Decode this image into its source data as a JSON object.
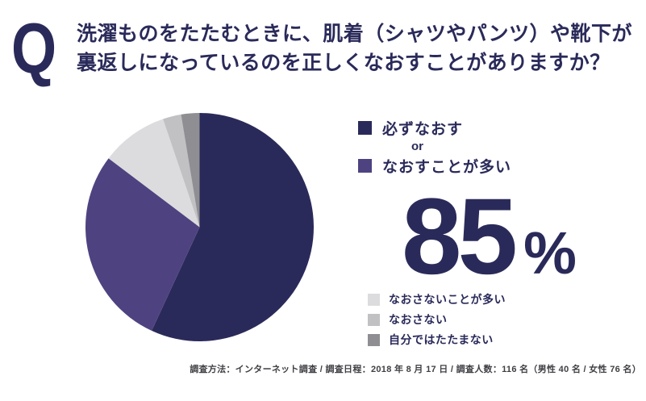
{
  "header": {
    "q_mark": "Q",
    "title_line1": "洗濯ものをたたむときに、肌着（シャツやパンツ）や靴下が",
    "title_line2": "裏返しになっているのを正しくなおすことがありますか？"
  },
  "chart_data": {
    "type": "pie",
    "title": "洗濯ものをたたむときに、肌着（シャツやパンツ）や靴下が裏返しになっているのを正しくなおすことがありますか？",
    "categories": [
      "必ずなおす",
      "なおすことが多い",
      "なおさないことが多い",
      "なおさない",
      "自分ではたたまない"
    ],
    "values": [
      56.9,
      28.4,
      9.5,
      2.6,
      2.6
    ],
    "colors": [
      "#2a2a5a",
      "#4e4380",
      "#dcdcde",
      "#c1c1c4",
      "#8f8f93"
    ],
    "start_angle": "top",
    "direction": "clockwise",
    "legend_position": "right",
    "highlight": {
      "value": "85",
      "unit": "%",
      "covers": "必ずなおす or なおすことが多い"
    }
  },
  "legend_main": {
    "item1": {
      "label": "必ずなおす",
      "color": "#2a2a5a"
    },
    "connector": "or",
    "item2": {
      "label": "なおすことが多い",
      "color": "#4e4380"
    }
  },
  "big_stat": {
    "value": "85",
    "unit": "%"
  },
  "legend_minor": {
    "items": [
      {
        "label": "なおさないことが多い",
        "color": "#dcdcde"
      },
      {
        "label": "なおさない",
        "color": "#c1c1c4"
      },
      {
        "label": "自分ではたたまない",
        "color": "#8f8f93"
      }
    ]
  },
  "footer": {
    "text": "調査方法：インターネット調査 / 調査日程：2018 年 8 月 17 日 / 調査人数：116 名（男性 40 名 / 女性 76 名）"
  }
}
